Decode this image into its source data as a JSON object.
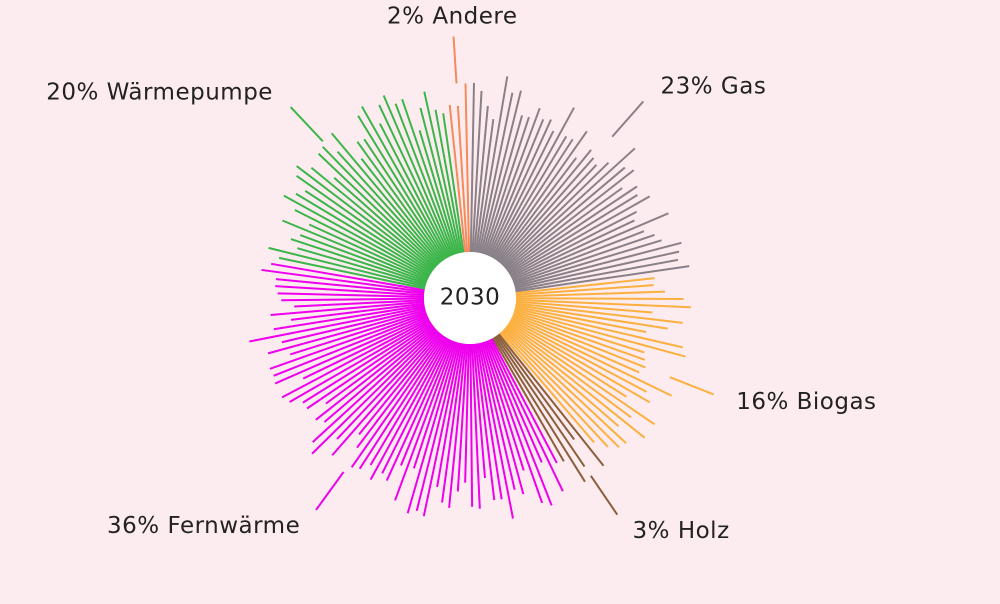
{
  "chart_data": {
    "type": "radial-pie",
    "center_label": "2030",
    "categories": [
      "Andere",
      "Gas",
      "Biogas",
      "Holz",
      "Fernwärme",
      "Wärmepumpe"
    ],
    "values": [
      2,
      23,
      16,
      3,
      36,
      20
    ],
    "value_labels": [
      "2%",
      "23%",
      "16%",
      "3%",
      "36%",
      "20%"
    ],
    "colors": [
      "#f58a5b",
      "#8a8088",
      "#fbb040",
      "#8b5e3c",
      "#ee00ee",
      "#3cb54a"
    ]
  }
}
